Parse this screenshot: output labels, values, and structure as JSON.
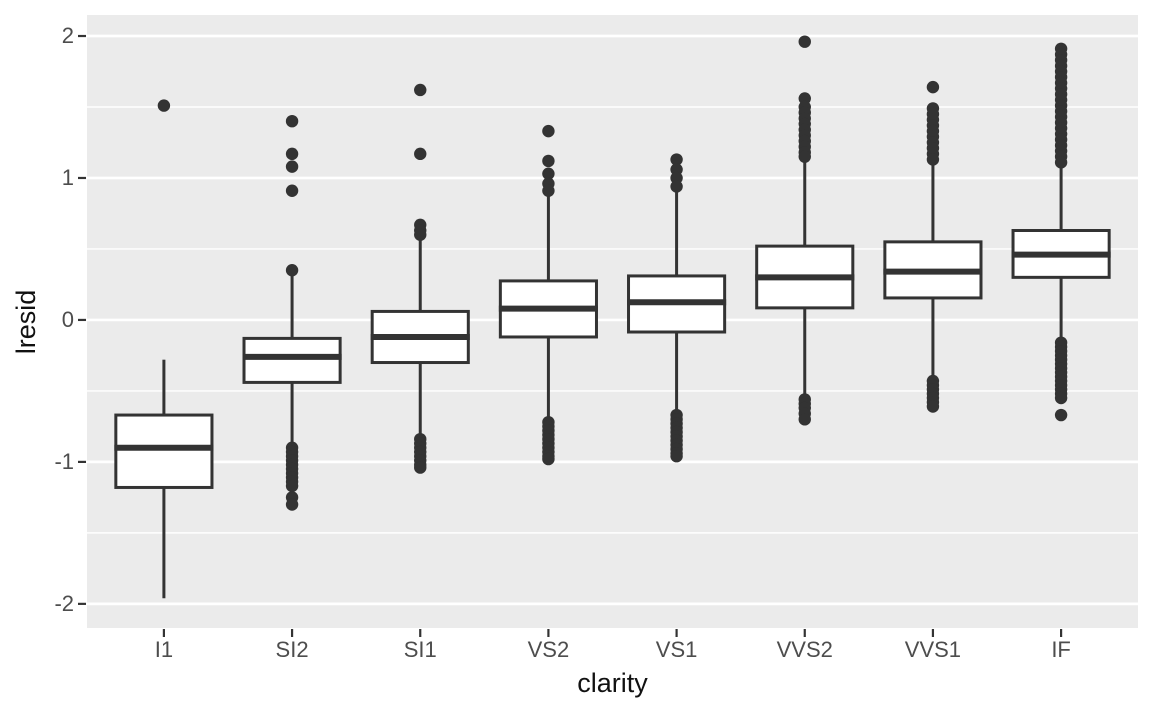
{
  "chart_data": {
    "type": "boxplot",
    "title": "",
    "xlabel": "clarity",
    "ylabel": "lresid",
    "categories": [
      "I1",
      "SI2",
      "SI1",
      "VS2",
      "VS1",
      "VVS2",
      "VVS1",
      "IF"
    ],
    "y_ticks": [
      2,
      1,
      0,
      -1,
      -2
    ],
    "y_tick_labels": [
      "2",
      "1",
      "0",
      "-1",
      "-2"
    ],
    "y_minor_ticks": [
      1.5,
      0.5,
      -0.5,
      -1.5
    ],
    "ylim": [
      -2.17,
      2.148
    ],
    "grid": "major-and-minor",
    "legend": "none",
    "series": [
      {
        "category": "I1",
        "whisker_low": -1.96,
        "q1": -1.18,
        "median": -0.9,
        "q3": -0.67,
        "whisker_high": -0.28,
        "outliers": [
          1.51
        ]
      },
      {
        "category": "SI2",
        "whisker_low": -0.88,
        "q1": -0.44,
        "median": -0.26,
        "q3": -0.13,
        "whisker_high": 0.31,
        "outliers": [
          1.4,
          1.17,
          1.08,
          0.91,
          0.35,
          -0.9,
          -0.93,
          -0.96,
          -0.99,
          -1.02,
          -1.05,
          -1.08,
          -1.11,
          -1.14,
          -1.17,
          -1.25,
          -1.3
        ]
      },
      {
        "category": "SI1",
        "whisker_low": -0.83,
        "q1": -0.3,
        "median": -0.12,
        "q3": 0.06,
        "whisker_high": 0.59,
        "outliers": [
          1.62,
          1.17,
          0.67,
          0.63,
          0.6,
          -0.84,
          -0.87,
          -0.9,
          -0.93,
          -0.96,
          -0.99,
          -1.02,
          -1.04
        ]
      },
      {
        "category": "VS2",
        "whisker_low": -0.7,
        "q1": -0.12,
        "median": 0.08,
        "q3": 0.275,
        "whisker_high": 0.89,
        "outliers": [
          1.33,
          1.12,
          1.03,
          0.96,
          0.91,
          -0.72,
          -0.75,
          -0.78,
          -0.81,
          -0.84,
          -0.87,
          -0.9,
          -0.93,
          -0.96,
          -0.98
        ]
      },
      {
        "category": "VS1",
        "whisker_low": -0.655,
        "q1": -0.085,
        "median": 0.125,
        "q3": 0.31,
        "whisker_high": 0.9,
        "outliers": [
          1.13,
          1.06,
          1.0,
          0.94,
          -0.67,
          -0.7,
          -0.73,
          -0.76,
          -0.79,
          -0.82,
          -0.85,
          -0.88,
          -0.91,
          -0.94,
          -0.96
        ]
      },
      {
        "category": "VVS2",
        "whisker_low": -0.545,
        "q1": 0.085,
        "median": 0.3,
        "q3": 0.52,
        "whisker_high": 1.13,
        "outliers": [
          1.96,
          1.56,
          1.5,
          1.46,
          1.42,
          1.38,
          1.34,
          1.3,
          1.26,
          1.22,
          1.18,
          1.15,
          -0.56,
          -0.59,
          -0.62,
          -0.66,
          -0.7
        ]
      },
      {
        "category": "VVS1",
        "whisker_low": -0.435,
        "q1": 0.155,
        "median": 0.34,
        "q3": 0.55,
        "whisker_high": 1.1,
        "outliers": [
          1.64,
          1.49,
          1.45,
          1.41,
          1.37,
          1.33,
          1.29,
          1.25,
          1.21,
          1.17,
          1.13,
          -0.43,
          -0.46,
          -0.49,
          -0.52,
          -0.55,
          -0.58,
          -0.61
        ]
      },
      {
        "category": "IF",
        "whisker_low": -0.15,
        "q1": 0.3,
        "median": 0.46,
        "q3": 0.63,
        "whisker_high": 1.08,
        "outliers": [
          1.91,
          1.87,
          1.83,
          1.79,
          1.75,
          1.71,
          1.67,
          1.63,
          1.59,
          1.55,
          1.51,
          1.47,
          1.43,
          1.39,
          1.35,
          1.31,
          1.27,
          1.23,
          1.19,
          1.15,
          1.11,
          -0.16,
          -0.19,
          -0.22,
          -0.25,
          -0.28,
          -0.31,
          -0.34,
          -0.37,
          -0.4,
          -0.43,
          -0.46,
          -0.49,
          -0.52,
          -0.55,
          -0.67
        ]
      }
    ],
    "style": {
      "panel_background": "#ebebeb",
      "grid_color": "#ffffff",
      "box_stroke": "#333333",
      "box_fill": "#ffffff",
      "median_color": "#333333",
      "outlier_color": "#333333",
      "tick_mark_color": "#333333",
      "tick_label_color": "#4d4d4d",
      "axis_title_color": "#111111"
    }
  }
}
